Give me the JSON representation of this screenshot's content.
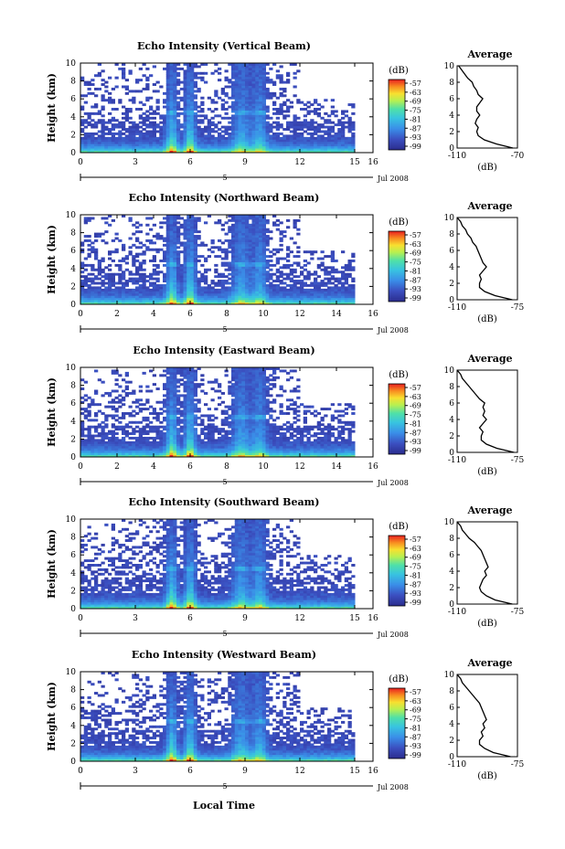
{
  "chart_data": [
    {
      "type": "heatmap",
      "title": "Echo Intensity (Vertical Beam)",
      "ylabel": "Height (km)",
      "xlabel": "",
      "xlim": [
        0,
        16
      ],
      "ylim": [
        0,
        10
      ],
      "x_ticks": [
        "0",
        "3",
        "6",
        "9",
        "12",
        "15",
        "16"
      ],
      "y_ticks": [
        "0",
        "2",
        "4",
        "6",
        "8",
        "10"
      ],
      "date_label": "Jul 2008",
      "marker_label": "5",
      "colorbar": {
        "unit": "(dB)",
        "ticks": [
          "-57",
          "-63",
          "-69",
          "-75",
          "-81",
          "-87",
          "-93",
          "-99"
        ]
      },
      "average": {
        "title": "Average",
        "xlabel": "(dB)",
        "xticks": [
          "-110",
          "-70"
        ],
        "height_km": [
          0,
          0.5,
          1,
          1.5,
          2,
          2.5,
          3,
          3.5,
          4,
          4.5,
          5,
          5.5,
          6,
          6.5,
          7,
          7.5,
          8,
          8.5,
          9,
          9.5,
          10
        ],
        "db": [
          -73,
          -84,
          -92,
          -96,
          -97,
          -96,
          -98,
          -97,
          -95,
          -97,
          -97,
          -95,
          -93,
          -96,
          -97,
          -99,
          -100,
          -103,
          -105,
          -107,
          -109
        ]
      }
    },
    {
      "type": "heatmap",
      "title": "Echo Intensity (Northward Beam)",
      "ylabel": "Height (km)",
      "xlabel": "",
      "xlim": [
        0,
        16
      ],
      "ylim": [
        0,
        10
      ],
      "x_ticks": [
        "0",
        "2",
        "4",
        "6",
        "8",
        "10",
        "12",
        "14",
        "16"
      ],
      "y_ticks": [
        "0",
        "2",
        "4",
        "6",
        "8",
        "10"
      ],
      "date_label": "Jul 2008",
      "marker_label": "5",
      "colorbar": {
        "unit": "(dB)",
        "ticks": [
          "-57",
          "-63",
          "-69",
          "-75",
          "-81",
          "-87",
          "-93",
          "-99"
        ]
      },
      "average": {
        "title": "Average",
        "xlabel": "(dB)",
        "xticks": [
          "-110",
          "-75"
        ],
        "height_km": [
          0,
          0.5,
          1,
          1.5,
          2,
          2.5,
          3,
          3.5,
          4,
          4.5,
          5,
          5.5,
          6,
          6.5,
          7,
          7.5,
          8,
          8.5,
          9,
          9.5,
          10
        ],
        "db": [
          -78,
          -88,
          -94,
          -97,
          -97,
          -96,
          -97,
          -95,
          -93,
          -95,
          -96,
          -97,
          -98,
          -99,
          -101,
          -102,
          -104,
          -105,
          -107,
          -108,
          -110
        ]
      }
    },
    {
      "type": "heatmap",
      "title": "Echo Intensity (Eastward Beam)",
      "ylabel": "Height (km)",
      "xlabel": "",
      "xlim": [
        0,
        16
      ],
      "ylim": [
        0,
        10
      ],
      "x_ticks": [
        "0",
        "2",
        "4",
        "6",
        "8",
        "10",
        "12",
        "14",
        "16"
      ],
      "y_ticks": [
        "0",
        "2",
        "4",
        "6",
        "8",
        "10"
      ],
      "date_label": "Jul 2008",
      "marker_label": "5",
      "colorbar": {
        "unit": "(dB)",
        "ticks": [
          "-57",
          "-63",
          "-69",
          "-75",
          "-81",
          "-87",
          "-93",
          "-99"
        ]
      },
      "average": {
        "title": "Average",
        "xlabel": "(dB)",
        "xticks": [
          "-110",
          "-75"
        ],
        "height_km": [
          0,
          0.5,
          1,
          1.5,
          2,
          2.5,
          3,
          3.5,
          4,
          4.5,
          5,
          5.5,
          6,
          6.5,
          7,
          7.5,
          8,
          8.5,
          9,
          9.5,
          10
        ],
        "db": [
          -77,
          -87,
          -93,
          -96,
          -96,
          -95,
          -97,
          -95,
          -93,
          -95,
          -94,
          -95,
          -94,
          -97,
          -99,
          -101,
          -103,
          -105,
          -107,
          -108,
          -110
        ]
      }
    },
    {
      "type": "heatmap",
      "title": "Echo Intensity (Southward Beam)",
      "ylabel": "Height (km)",
      "xlabel": "",
      "xlim": [
        0,
        16
      ],
      "ylim": [
        0,
        10
      ],
      "x_ticks": [
        "0",
        "3",
        "6",
        "9",
        "12",
        "15",
        "16"
      ],
      "y_ticks": [
        "0",
        "2",
        "4",
        "6",
        "8",
        "10"
      ],
      "date_label": "Jul 2008",
      "marker_label": "5",
      "colorbar": {
        "unit": "(dB)",
        "ticks": [
          "-57",
          "-63",
          "-69",
          "-75",
          "-81",
          "-87",
          "-93",
          "-99"
        ]
      },
      "average": {
        "title": "Average",
        "xlabel": "(dB)",
        "xticks": [
          "-110",
          "-75"
        ],
        "height_km": [
          0,
          0.5,
          1,
          1.5,
          2,
          2.5,
          3,
          3.5,
          4,
          4.5,
          5,
          5.5,
          6,
          6.5,
          7,
          7.5,
          8,
          8.5,
          9,
          9.5,
          10
        ],
        "db": [
          -78,
          -88,
          -93,
          -96,
          -97,
          -96,
          -95,
          -93,
          -94,
          -92,
          -93,
          -94,
          -95,
          -96,
          -98,
          -100,
          -103,
          -105,
          -107,
          -108,
          -110
        ]
      }
    },
    {
      "type": "heatmap",
      "title": "Echo Intensity (Westward Beam)",
      "ylabel": "Height (km)",
      "xlabel": "Local Time",
      "xlim": [
        0,
        16
      ],
      "ylim": [
        0,
        10
      ],
      "x_ticks": [
        "0",
        "3",
        "6",
        "9",
        "12",
        "15",
        "16"
      ],
      "y_ticks": [
        "0",
        "2",
        "4",
        "6",
        "8",
        "10"
      ],
      "date_label": "Jul 2008",
      "marker_label": "5",
      "colorbar": {
        "unit": "(dB)",
        "ticks": [
          "-57",
          "-63",
          "-69",
          "-75",
          "-81",
          "-87",
          "-93",
          "-99"
        ]
      },
      "average": {
        "title": "Average",
        "xlabel": "(dB)",
        "xticks": [
          "-110",
          "-75"
        ],
        "height_km": [
          0,
          0.5,
          1,
          1.5,
          2,
          2.5,
          3,
          3.5,
          4,
          4.5,
          5,
          5.5,
          6,
          6.5,
          7,
          7.5,
          8,
          8.5,
          9,
          9.5,
          10
        ],
        "db": [
          -79,
          -89,
          -94,
          -97,
          -97,
          -95,
          -96,
          -94,
          -95,
          -93,
          -94,
          -95,
          -96,
          -97,
          -99,
          -101,
          -103,
          -105,
          -107,
          -108,
          -110
        ]
      }
    }
  ]
}
